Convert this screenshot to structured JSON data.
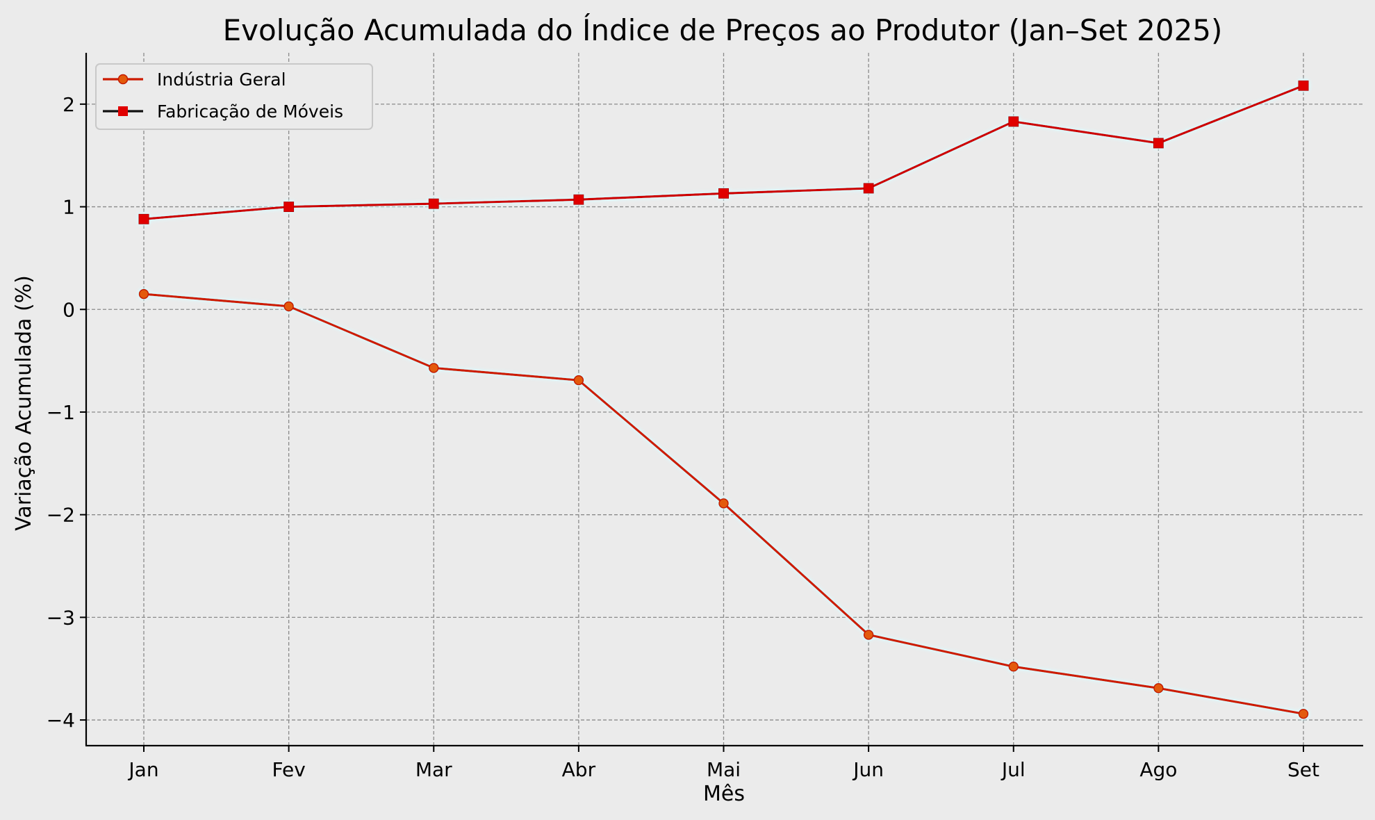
{
  "chart_data": {
    "type": "line",
    "title": "Evolução Acumulada do Índice de Preços ao Produtor (Jan–Set 2025)",
    "xlabel": "Mês",
    "ylabel": "Variação Acumulada (%)",
    "categories": [
      "Jan",
      "Fev",
      "Mar",
      "Abr",
      "Mai",
      "Jun",
      "Jul",
      "Ago",
      "Set"
    ],
    "ylim": [
      -4.25,
      2.5
    ],
    "yticks": [
      2,
      1,
      0,
      -1,
      -2,
      -3,
      -4
    ],
    "ytick_labels": [
      "2",
      "1",
      "0",
      "−1",
      "−2",
      "−3",
      "−4"
    ],
    "grid": true,
    "legend_position": "top-left",
    "series": [
      {
        "name": "Indústria Geral",
        "marker": "circle",
        "line_color": "#cc1a00",
        "marker_color": "#e35a0a",
        "values": [
          0.15,
          0.03,
          -0.57,
          -0.69,
          -1.89,
          -3.17,
          -3.48,
          -3.69,
          -3.94
        ]
      },
      {
        "name": "Fabricação de Móveis",
        "marker": "square",
        "line_color": "#cc0000",
        "marker_color": "#e00000",
        "values": [
          0.88,
          1.0,
          1.03,
          1.07,
          1.13,
          1.18,
          1.83,
          1.62,
          2.18
        ]
      }
    ]
  }
}
